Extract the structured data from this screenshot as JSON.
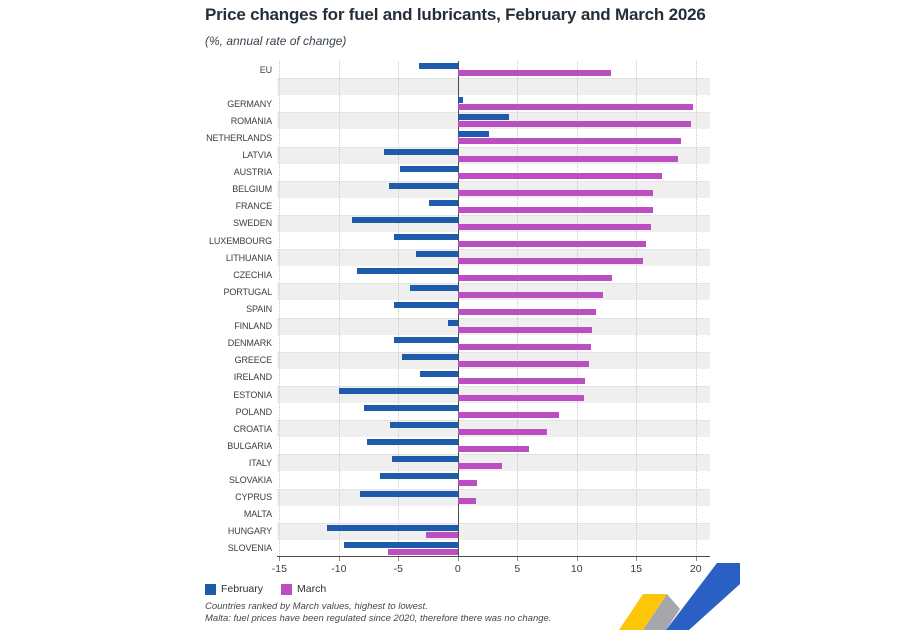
{
  "header": {
    "title": "Price changes for fuel and lubricants, February and March 2026",
    "subtitle": "(%, annual rate of change)"
  },
  "legend": {
    "february_label": "February",
    "march_label": "March"
  },
  "footnotes": {
    "line1": "Countries ranked by March values, highest to lowest.",
    "line2": "Malta: fuel prices have been regulated since 2020, therefore there was no change."
  },
  "colors": {
    "february": "#1e5cab",
    "march": "#bb4fc1",
    "band": "#efeff0",
    "zero_line": "#4d4d4d",
    "gridline": "#c9c9c9",
    "logo_yellow": "#fdc608",
    "logo_gray": "#a5a7aa",
    "logo_blue": "#2a5fc4"
  },
  "chart_data": {
    "type": "bar",
    "orientation": "horizontal",
    "title": "Price changes for fuel and lubricants, February and March 2026",
    "subtitle": "(%, annual rate of change)",
    "xlabel": "",
    "ylabel": "",
    "x_ticks": [
      -15,
      -10,
      -5,
      0,
      5,
      10,
      15,
      20
    ],
    "xlim": [
      -15.2,
      21.2
    ],
    "grid": "dotted-vertical",
    "legend_position": "bottom",
    "gap_after_first_category": true,
    "categories": [
      "EU",
      "GERMANY",
      "ROMANIA",
      "NETHERLANDS",
      "LATVIA",
      "AUSTRIA",
      "BELGIUM",
      "FRANCE",
      "SWEDEN",
      "LUXEMBOURG",
      "LITHUANIA",
      "CZECHIA",
      "PORTUGAL",
      "SPAIN",
      "FINLAND",
      "DENMARK",
      "GREECE",
      "IRELAND",
      "ESTONIA",
      "POLAND",
      "CROATIA",
      "BULGARIA",
      "ITALY",
      "SLOVAKIA",
      "CYPRUS",
      "MALTA",
      "HUNGARY",
      "SLOVENIA"
    ],
    "series": [
      {
        "name": "February",
        "values": [
          -3.3,
          0.4,
          4.3,
          2.6,
          -6.2,
          -4.9,
          -5.8,
          -2.4,
          -8.9,
          -5.4,
          -3.5,
          -8.5,
          -4.0,
          -5.4,
          -0.8,
          -5.4,
          -4.7,
          -3.2,
          -10.0,
          -7.9,
          -5.7,
          -7.6,
          -5.5,
          -6.5,
          -8.2,
          null,
          -11.0,
          -9.6
        ]
      },
      {
        "name": "March",
        "values": [
          12.9,
          19.8,
          19.6,
          18.8,
          18.5,
          17.2,
          16.4,
          16.4,
          16.2,
          15.8,
          15.6,
          13.0,
          12.2,
          11.6,
          11.3,
          11.2,
          11.0,
          10.7,
          10.6,
          8.5,
          7.5,
          6.0,
          3.7,
          1.6,
          1.5,
          null,
          -2.7,
          -5.9
        ]
      }
    ]
  }
}
